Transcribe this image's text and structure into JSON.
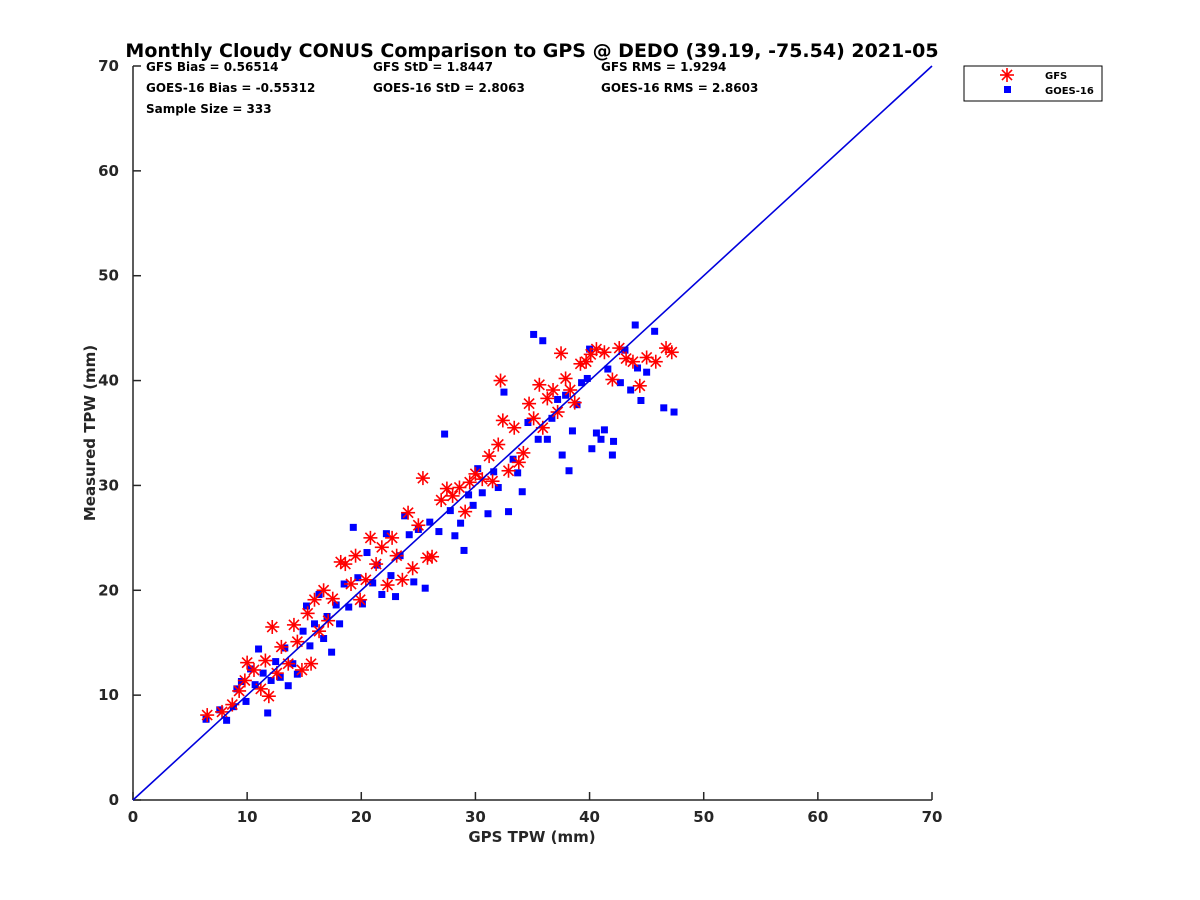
{
  "chart_data": {
    "type": "scatter",
    "title": "Monthly Cloudy CONUS Comparison to GPS @ DEDO (39.19, -75.54) 2021-05",
    "xlabel": "GPS TPW (mm)",
    "ylabel": "Measured TPW (mm)",
    "xlim": [
      0,
      70
    ],
    "ylim": [
      0,
      70
    ],
    "xticks": [
      "0",
      "10",
      "20",
      "30",
      "40",
      "50",
      "60",
      "70"
    ],
    "yticks": [
      "0",
      "10",
      "20",
      "30",
      "40",
      "50",
      "60",
      "70"
    ],
    "grid": false,
    "legend_position": "top-right",
    "stats": {
      "gfs_bias": "GFS Bias = 0.56514",
      "goes_bias": "GOES-16 Bias = -0.55312",
      "sample_size": "Sample Size = 333",
      "gfs_std": "GFS StD = 1.8447",
      "goes_std": "GOES-16 StD = 2.8063",
      "gfs_rms": "GFS RMS = 1.9294",
      "goes_rms": "GOES-16 RMS = 2.8603"
    },
    "reference_line": {
      "x": [
        0,
        70
      ],
      "y": [
        0,
        70
      ],
      "color": "#0000dd"
    },
    "series": [
      {
        "name": "GFS",
        "marker": "asterisk",
        "color": "#ff0000",
        "points": [
          [
            6.5,
            8.1
          ],
          [
            7.8,
            8.4
          ],
          [
            8.7,
            9.1
          ],
          [
            9.3,
            10.4
          ],
          [
            9.8,
            11.4
          ],
          [
            10.0,
            13.1
          ],
          [
            10.6,
            12.4
          ],
          [
            11.2,
            10.6
          ],
          [
            11.6,
            13.3
          ],
          [
            11.9,
            9.9
          ],
          [
            12.2,
            16.5
          ],
          [
            12.6,
            12.1
          ],
          [
            13.0,
            14.6
          ],
          [
            13.6,
            13.0
          ],
          [
            14.1,
            16.7
          ],
          [
            14.4,
            15.1
          ],
          [
            14.8,
            12.4
          ],
          [
            15.3,
            17.8
          ],
          [
            15.6,
            13.0
          ],
          [
            15.9,
            19.1
          ],
          [
            16.3,
            16.1
          ],
          [
            16.7,
            20.0
          ],
          [
            17.1,
            17.1
          ],
          [
            17.5,
            19.2
          ],
          [
            18.2,
            22.7
          ],
          [
            18.6,
            22.5
          ],
          [
            19.1,
            20.6
          ],
          [
            19.5,
            23.3
          ],
          [
            19.9,
            19.1
          ],
          [
            20.4,
            21.0
          ],
          [
            20.8,
            25.0
          ],
          [
            21.3,
            22.5
          ],
          [
            21.8,
            24.1
          ],
          [
            22.3,
            20.5
          ],
          [
            22.7,
            25.0
          ],
          [
            23.1,
            23.3
          ],
          [
            23.6,
            21.0
          ],
          [
            24.1,
            27.4
          ],
          [
            24.5,
            22.1
          ],
          [
            25.0,
            26.2
          ],
          [
            25.4,
            30.7
          ],
          [
            25.8,
            23.1
          ],
          [
            26.2,
            23.2
          ],
          [
            27.0,
            28.6
          ],
          [
            27.5,
            29.7
          ],
          [
            28.0,
            29.0
          ],
          [
            28.6,
            29.8
          ],
          [
            29.1,
            27.5
          ],
          [
            29.5,
            30.3
          ],
          [
            30.0,
            31.1
          ],
          [
            30.6,
            30.6
          ],
          [
            31.2,
            32.8
          ],
          [
            31.5,
            30.4
          ],
          [
            32.0,
            33.9
          ],
          [
            32.2,
            40.0
          ],
          [
            32.4,
            36.2
          ],
          [
            32.9,
            31.4
          ],
          [
            33.4,
            35.5
          ],
          [
            33.8,
            32.2
          ],
          [
            34.2,
            33.1
          ],
          [
            34.7,
            37.8
          ],
          [
            35.1,
            36.4
          ],
          [
            35.6,
            39.6
          ],
          [
            35.9,
            35.5
          ],
          [
            36.3,
            38.3
          ],
          [
            36.8,
            39.1
          ],
          [
            37.2,
            37.0
          ],
          [
            37.5,
            42.6
          ],
          [
            37.9,
            40.2
          ],
          [
            38.3,
            39.1
          ],
          [
            38.7,
            37.9
          ],
          [
            39.2,
            41.6
          ],
          [
            39.7,
            41.8
          ],
          [
            40.1,
            42.5
          ],
          [
            40.6,
            43.0
          ],
          [
            41.3,
            42.7
          ],
          [
            42.0,
            40.1
          ],
          [
            42.6,
            43.1
          ],
          [
            43.2,
            42.1
          ],
          [
            43.8,
            41.8
          ],
          [
            44.4,
            39.5
          ],
          [
            45.0,
            42.2
          ],
          [
            45.8,
            41.8
          ],
          [
            46.7,
            43.1
          ],
          [
            47.2,
            42.7
          ]
        ]
      },
      {
        "name": "GOES-16",
        "marker": "square",
        "color": "#0000ff",
        "points": [
          [
            6.4,
            7.7
          ],
          [
            7.6,
            8.6
          ],
          [
            8.2,
            7.6
          ],
          [
            8.8,
            8.9
          ],
          [
            9.1,
            10.6
          ],
          [
            9.5,
            11.3
          ],
          [
            9.9,
            9.4
          ],
          [
            10.3,
            12.5
          ],
          [
            10.7,
            11.0
          ],
          [
            11.0,
            14.4
          ],
          [
            11.4,
            12.1
          ],
          [
            11.8,
            8.3
          ],
          [
            12.1,
            11.4
          ],
          [
            12.5,
            13.2
          ],
          [
            12.9,
            11.7
          ],
          [
            13.3,
            14.5
          ],
          [
            13.6,
            10.9
          ],
          [
            14.0,
            13.0
          ],
          [
            14.4,
            12.0
          ],
          [
            14.9,
            16.1
          ],
          [
            15.2,
            18.5
          ],
          [
            15.5,
            14.7
          ],
          [
            15.9,
            16.8
          ],
          [
            16.3,
            19.6
          ],
          [
            16.7,
            15.4
          ],
          [
            17.0,
            17.5
          ],
          [
            17.4,
            14.1
          ],
          [
            17.8,
            18.6
          ],
          [
            18.1,
            16.8
          ],
          [
            18.5,
            20.6
          ],
          [
            18.9,
            18.4
          ],
          [
            19.3,
            26.0
          ],
          [
            19.7,
            21.2
          ],
          [
            20.1,
            18.7
          ],
          [
            20.5,
            23.6
          ],
          [
            21.0,
            20.7
          ],
          [
            21.4,
            22.4
          ],
          [
            21.8,
            19.6
          ],
          [
            22.2,
            25.4
          ],
          [
            22.6,
            21.4
          ],
          [
            23.0,
            19.4
          ],
          [
            23.4,
            23.3
          ],
          [
            23.8,
            27.1
          ],
          [
            24.2,
            25.3
          ],
          [
            24.6,
            20.8
          ],
          [
            25.0,
            25.8
          ],
          [
            25.6,
            20.2
          ],
          [
            26.0,
            26.5
          ],
          [
            26.8,
            25.6
          ],
          [
            27.3,
            34.9
          ],
          [
            27.8,
            27.6
          ],
          [
            28.2,
            25.2
          ],
          [
            28.7,
            26.4
          ],
          [
            29.0,
            23.8
          ],
          [
            29.4,
            29.1
          ],
          [
            29.8,
            28.1
          ],
          [
            30.2,
            31.6
          ],
          [
            30.6,
            29.3
          ],
          [
            31.1,
            27.3
          ],
          [
            31.6,
            31.3
          ],
          [
            32.0,
            29.8
          ],
          [
            32.5,
            38.9
          ],
          [
            32.9,
            27.5
          ],
          [
            33.3,
            32.5
          ],
          [
            33.7,
            31.2
          ],
          [
            34.1,
            29.4
          ],
          [
            34.6,
            36.0
          ],
          [
            35.1,
            44.4
          ],
          [
            35.5,
            34.4
          ],
          [
            35.9,
            43.8
          ],
          [
            36.3,
            34.4
          ],
          [
            36.7,
            36.4
          ],
          [
            37.2,
            38.2
          ],
          [
            37.6,
            32.9
          ],
          [
            37.9,
            38.6
          ],
          [
            38.2,
            31.4
          ],
          [
            38.5,
            35.2
          ],
          [
            38.9,
            37.7
          ],
          [
            39.3,
            39.8
          ],
          [
            39.8,
            40.2
          ],
          [
            40.0,
            43.0
          ],
          [
            40.2,
            33.5
          ],
          [
            40.6,
            35.0
          ],
          [
            41.0,
            34.4
          ],
          [
            41.3,
            35.3
          ],
          [
            41.6,
            41.1
          ],
          [
            42.0,
            32.9
          ],
          [
            42.1,
            34.2
          ],
          [
            42.7,
            39.8
          ],
          [
            43.1,
            42.9
          ],
          [
            43.6,
            39.1
          ],
          [
            44.0,
            45.3
          ],
          [
            44.2,
            41.2
          ],
          [
            44.5,
            38.1
          ],
          [
            45.0,
            40.8
          ],
          [
            45.7,
            44.7
          ],
          [
            46.5,
            37.4
          ],
          [
            47.4,
            37.0
          ]
        ]
      }
    ]
  }
}
